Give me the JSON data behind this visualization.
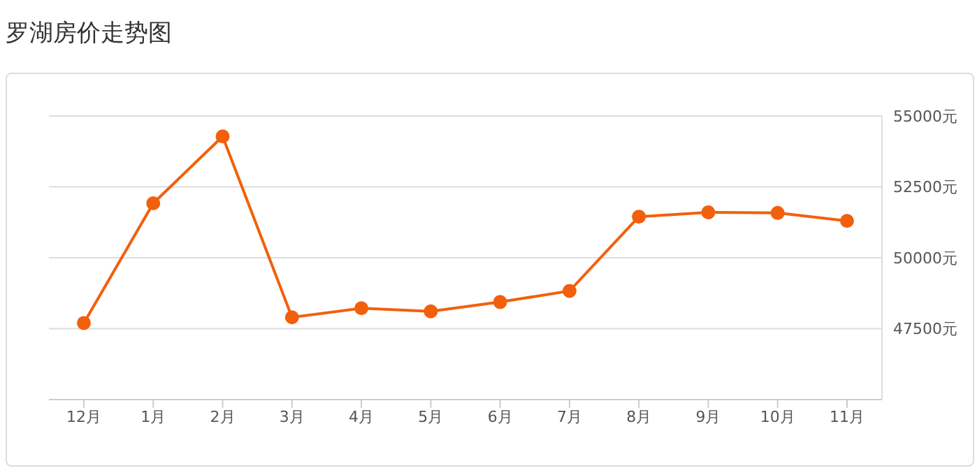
{
  "chart_data": {
    "type": "line",
    "title": "罗湖房价走势图",
    "categories": [
      "12月",
      "1月",
      "2月",
      "3月",
      "4月",
      "5月",
      "6月",
      "7月",
      "8月",
      "9月",
      "10月",
      "11月"
    ],
    "series": [
      {
        "color": "#f2600c",
        "values": [
          47700,
          51920,
          54280,
          47900,
          48220,
          48110,
          48440,
          48830,
          51450,
          51600,
          51580,
          51300
        ]
      }
    ],
    "ylim": [
      45000,
      55000
    ],
    "yticks": [
      {
        "value": 47500,
        "label": "47500元"
      },
      {
        "value": 50000,
        "label": "50000元"
      },
      {
        "value": 52500,
        "label": "52500元"
      },
      {
        "value": 55000,
        "label": "55000元"
      }
    ],
    "grid": "y",
    "marker": "circle",
    "line_style": "solid"
  }
}
